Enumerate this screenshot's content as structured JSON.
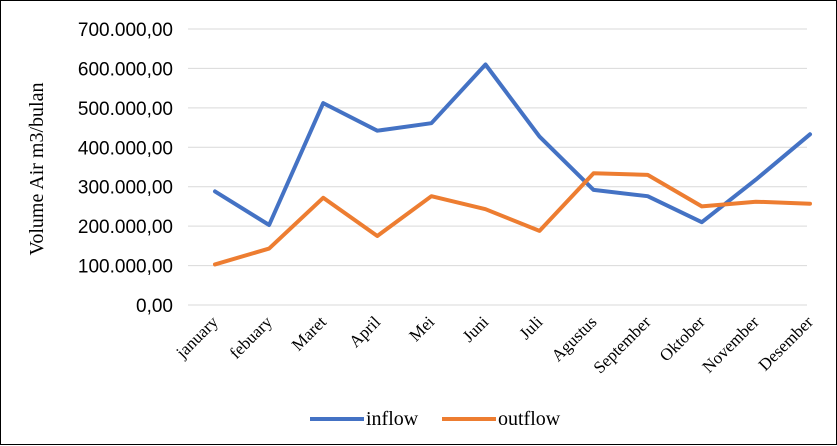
{
  "chart_data": {
    "type": "line",
    "title": "",
    "xlabel": "",
    "ylabel": "Volume Air m3/bulan",
    "categories": [
      "january",
      "febuary",
      "Maret",
      "April",
      "Mei",
      "Juni",
      "Juli",
      "Agustus",
      "September",
      "Oktober",
      "November",
      "Desember"
    ],
    "series": [
      {
        "name": "inflow",
        "color": "#4472C4",
        "values": [
          288000,
          203000,
          512000,
          442000,
          461000,
          610000,
          427000,
          292000,
          276000,
          210000,
          318000,
          433000
        ]
      },
      {
        "name": "outflow",
        "color": "#ED7D31",
        "values": [
          103000,
          143000,
          272000,
          175000,
          276000,
          243000,
          188000,
          334000,
          330000,
          250000,
          262000,
          257000
        ]
      }
    ],
    "ylim": [
      0,
      700000
    ],
    "yticks": [
      0,
      100000,
      200000,
      300000,
      400000,
      500000,
      600000,
      700000
    ],
    "ytick_labels": [
      "0,00",
      "100.000,00",
      "200.000,00",
      "300.000,00",
      "400.000,00",
      "500.000,00",
      "600.000,00",
      "700.000,00"
    ],
    "grid": true,
    "legend_position": "bottom"
  }
}
